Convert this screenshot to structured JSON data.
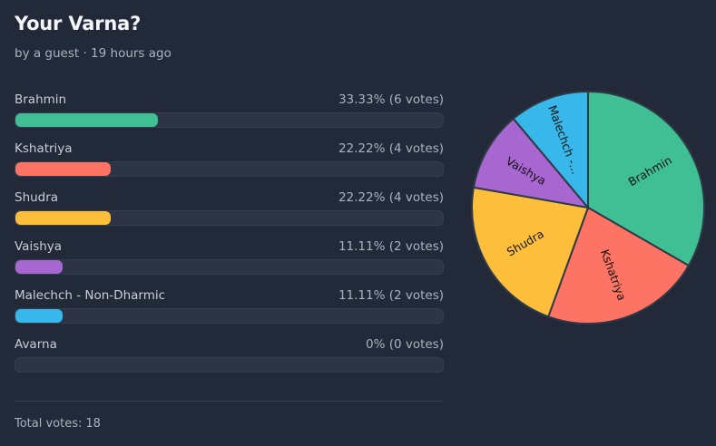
{
  "poll": {
    "title": "Your Varna?",
    "meta": "by a guest · 19 hours ago",
    "total_label": "Total votes:",
    "total_votes": "18"
  },
  "options": [
    {
      "label": "Brahmin",
      "result": "33.33% (6 votes)",
      "fraction": 0.3333,
      "color": "#3fbf93",
      "pie_label": "Brahmin"
    },
    {
      "label": "Kshatriya",
      "result": "22.22% (4 votes)",
      "fraction": 0.2222,
      "color": "#fd7464",
      "pie_label": "Kshatriya"
    },
    {
      "label": "Shudra",
      "result": "22.22% (4 votes)",
      "fraction": 0.2222,
      "color": "#fdbf3b",
      "pie_label": "Shudra"
    },
    {
      "label": "Vaishya",
      "result": "11.11% (2 votes)",
      "fraction": 0.1111,
      "color": "#a867d0",
      "pie_label": "Vaishya"
    },
    {
      "label": "Malechch - Non-Dharmic",
      "result": "11.11% (2 votes)",
      "fraction": 0.1111,
      "color": "#38b8ea",
      "pie_label": "Malechch -..."
    },
    {
      "label": "Avarna",
      "result": "0% (0 votes)",
      "fraction": 0,
      "color": "#7f8a9c",
      "pie_label": ""
    }
  ],
  "chart_data": {
    "type": "pie",
    "categories": [
      "Brahmin",
      "Kshatriya",
      "Shudra",
      "Vaishya",
      "Malechch - Non-Dharmic",
      "Avarna"
    ],
    "values": [
      6,
      4,
      4,
      2,
      2,
      0
    ],
    "colors": [
      "#3fbf93",
      "#fd7464",
      "#fdbf3b",
      "#a867d0",
      "#38b8ea",
      "#7f8a9c"
    ]
  }
}
